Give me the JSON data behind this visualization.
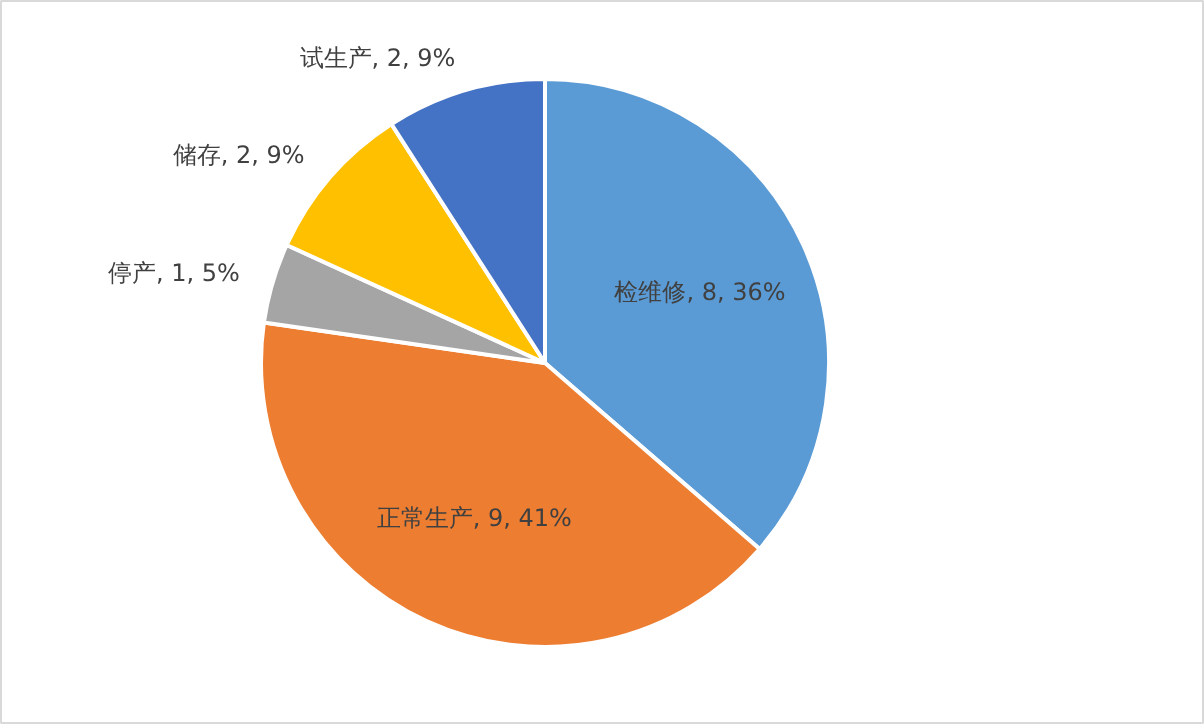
{
  "chart_data": {
    "type": "pie",
    "categories": [
      "检维修",
      "正常生产",
      "停产",
      "储存",
      "试生产"
    ],
    "values": [
      8,
      9,
      1,
      2,
      2
    ],
    "colors": [
      "#5b9bd5",
      "#ed7d31",
      "#a5a5a5",
      "#ffc000",
      "#4472c4"
    ],
    "value_labels": [
      "8, 36%",
      "9, 41%",
      "1, 5%",
      "2, 9%",
      "2, 9%"
    ],
    "legend": false
  }
}
